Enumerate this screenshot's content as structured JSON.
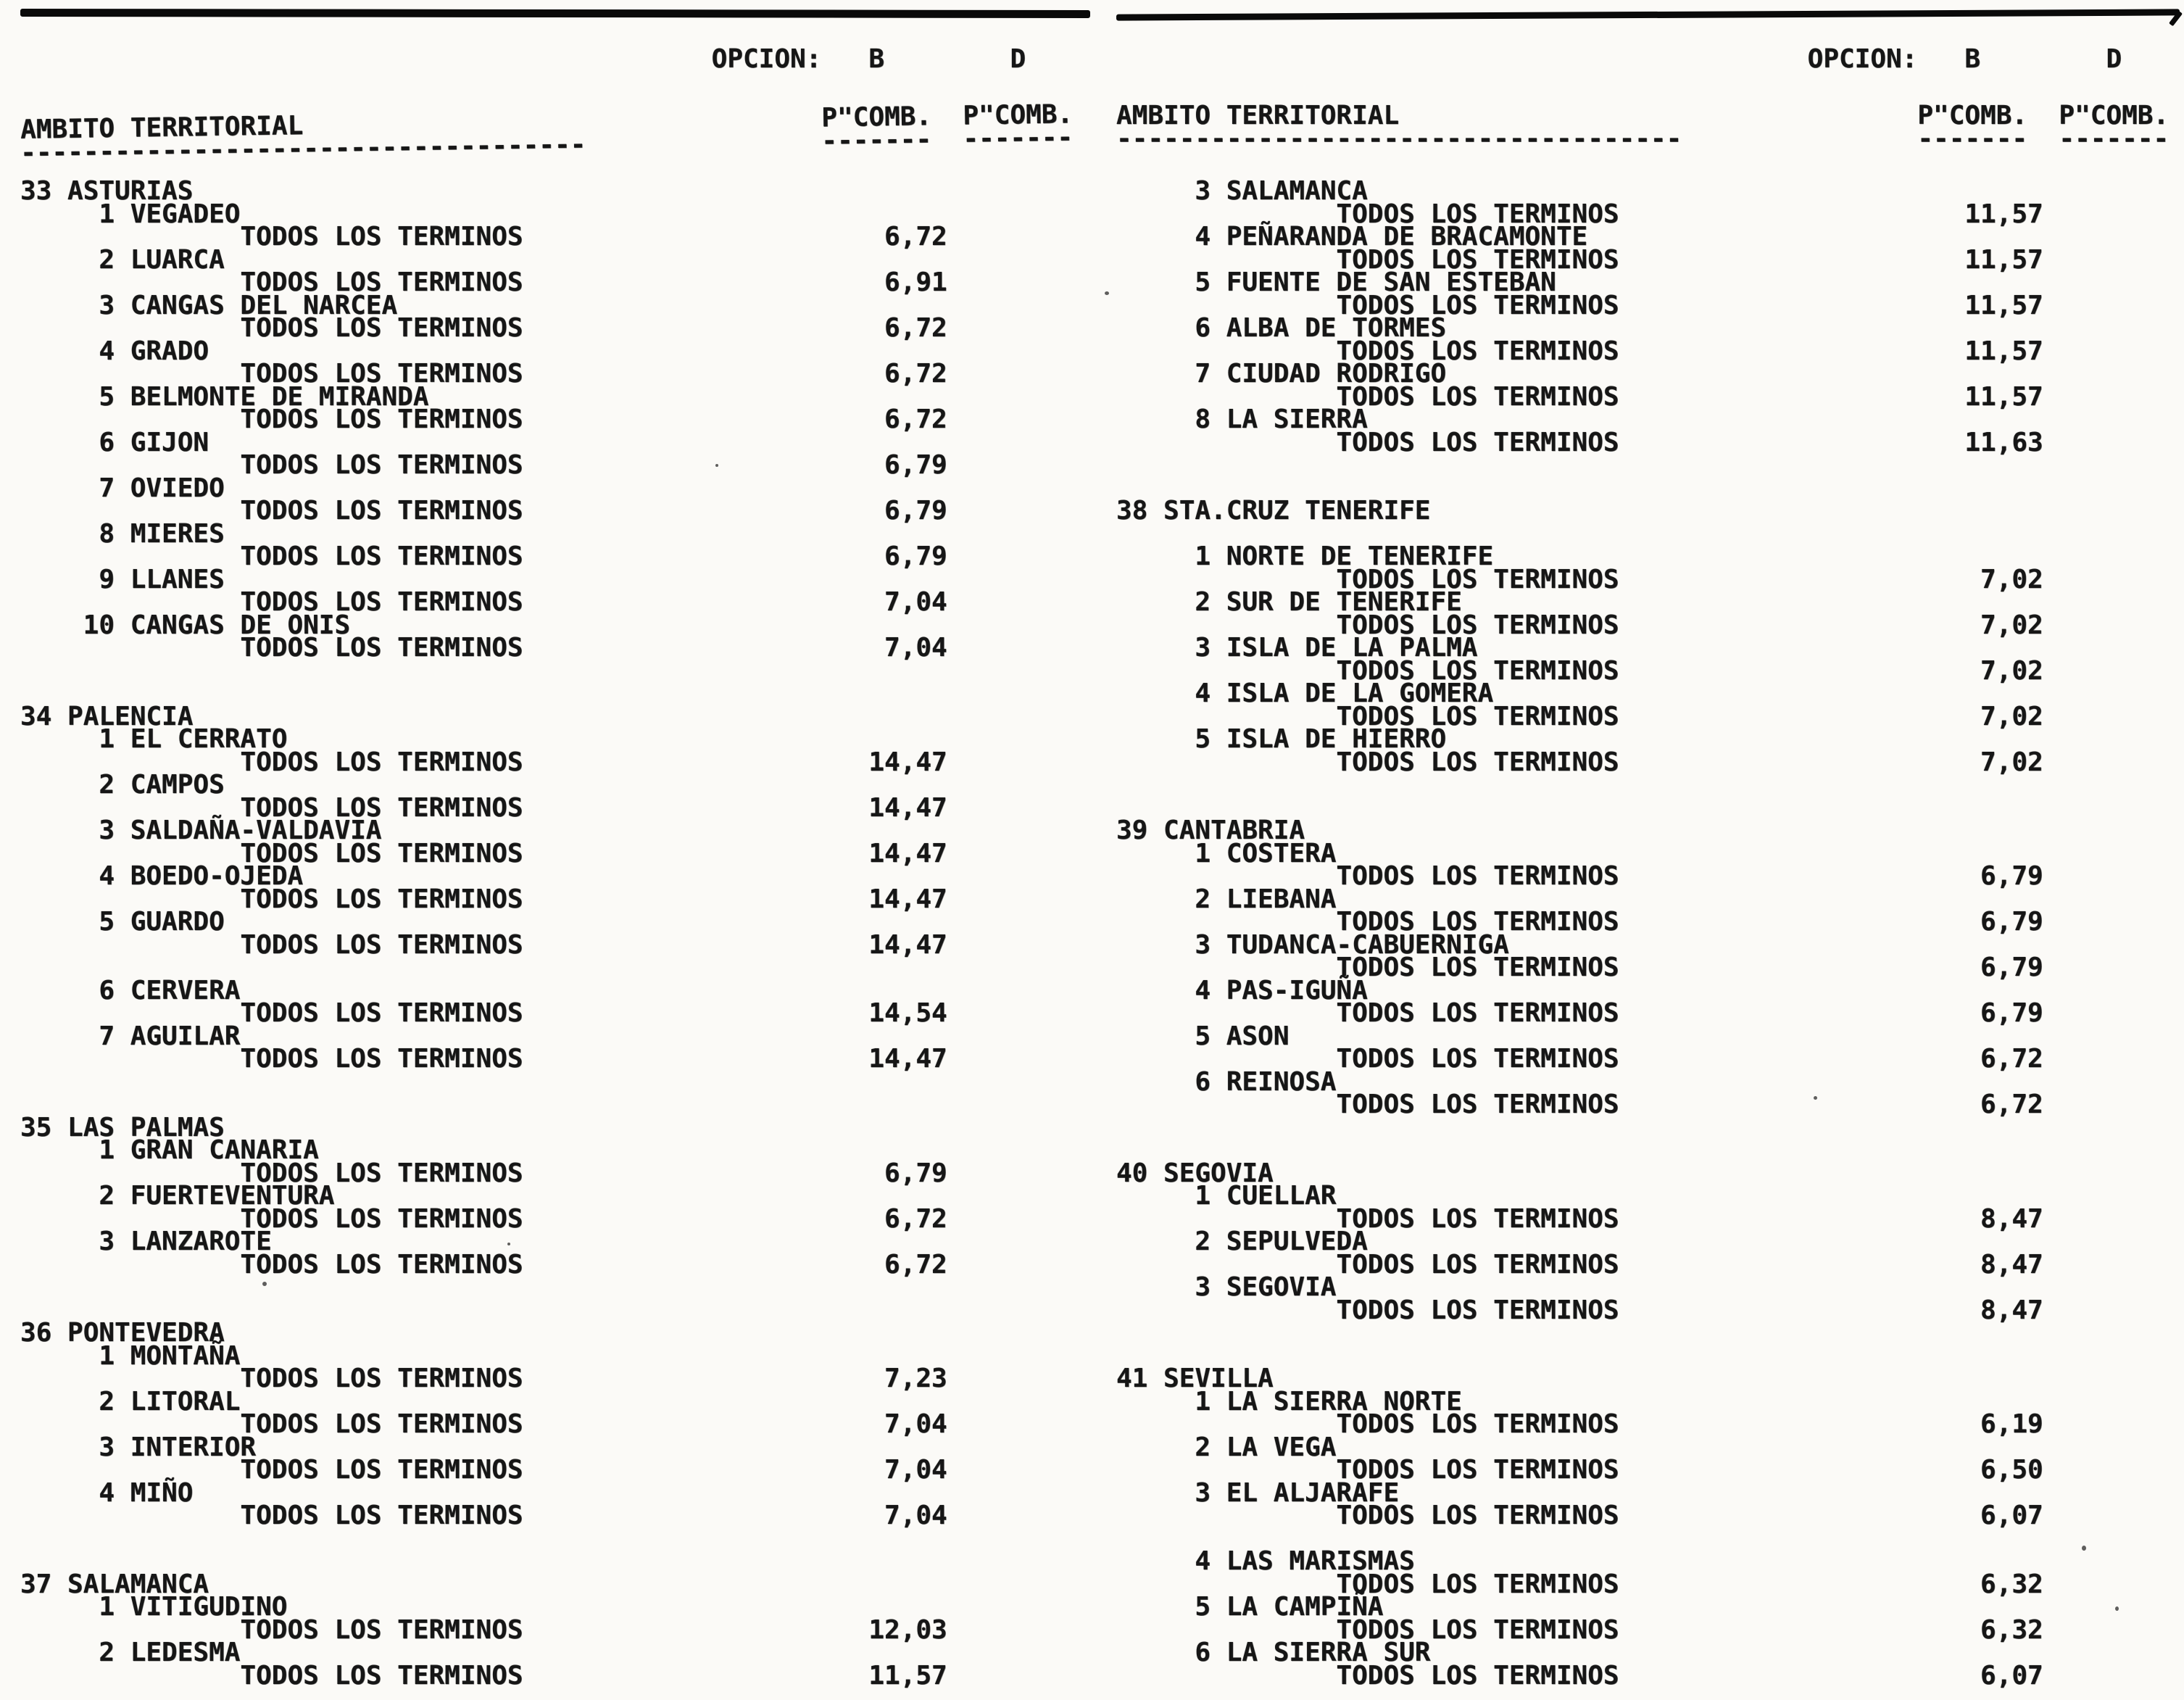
{
  "colors": {
    "ink": "#161616",
    "paper": "#fbfaf7",
    "rule": "#0a0a0a"
  },
  "scope_label": "TODOS LOS TERMINOS",
  "columns": [
    {
      "header": {
        "opcion_label": "OPCION:",
        "option_b": "B",
        "option_d": "D",
        "ambito_label": "AMBITO TERRITORIAL",
        "ambito_underline": "------------------------------------",
        "pcomb_b_label": "P\"COMB.",
        "pcomb_d_label": "P\"COMB.",
        "pcomb_underline_b": "-------",
        "pcomb_underline_d": "-------"
      },
      "provinces": [
        {
          "code": "33",
          "name": "ASTURIAS",
          "entries": [
            {
              "num": "1",
              "name": "VEGADEO",
              "pcomb_b": "6,72",
              "pcomb_d": ""
            },
            {
              "num": "2",
              "name": "LUARCA",
              "pcomb_b": "6,91",
              "pcomb_d": ""
            },
            {
              "num": "3",
              "name": "CANGAS DEL NARCEA",
              "pcomb_b": "6,72",
              "pcomb_d": ""
            },
            {
              "num": "4",
              "name": "GRADO",
              "pcomb_b": "6,72",
              "pcomb_d": ""
            },
            {
              "num": "5",
              "name": "BELMONTE DE MIRANDA",
              "pcomb_b": "6,72",
              "pcomb_d": ""
            },
            {
              "num": "6",
              "name": "GIJON",
              "pcomb_b": "6,79",
              "pcomb_d": ""
            },
            {
              "num": "7",
              "name": "OVIEDO",
              "pcomb_b": "6,79",
              "pcomb_d": ""
            },
            {
              "num": "8",
              "name": "MIERES",
              "pcomb_b": "6,79",
              "pcomb_d": ""
            },
            {
              "num": "9",
              "name": "LLANES",
              "pcomb_b": "7,04",
              "pcomb_d": ""
            },
            {
              "num": "10",
              "name": "CANGAS DE ONIS",
              "pcomb_b": "7,04",
              "pcomb_d": ""
            }
          ]
        },
        {
          "code": "34",
          "name": "PALENCIA",
          "entries": [
            {
              "num": "1",
              "name": "EL CERRATO",
              "pcomb_b": "14,47",
              "pcomb_d": ""
            },
            {
              "num": "2",
              "name": "CAMPOS",
              "pcomb_b": "14,47",
              "pcomb_d": ""
            },
            {
              "num": "3",
              "name": "SALDAÑA-VALDAVIA",
              "pcomb_b": "14,47",
              "pcomb_d": ""
            },
            {
              "num": "4",
              "name": "BOEDO-OJEDA",
              "pcomb_b": "14,47",
              "pcomb_d": ""
            },
            {
              "num": "5",
              "name": "GUARDO",
              "pcomb_b": "14,47",
              "pcomb_d": ""
            },
            {
              "num": "6",
              "name": "CERVERA",
              "pcomb_b": "14,54",
              "pcomb_d": "",
              "gap_before": true
            },
            {
              "num": "7",
              "name": "AGUILAR",
              "pcomb_b": "14,47",
              "pcomb_d": ""
            }
          ]
        },
        {
          "code": "35",
          "name": "LAS PALMAS",
          "entries": [
            {
              "num": "1",
              "name": "GRAN CANARIA",
              "pcomb_b": "6,79",
              "pcomb_d": ""
            },
            {
              "num": "2",
              "name": "FUERTEVENTURA",
              "pcomb_b": "6,72",
              "pcomb_d": ""
            },
            {
              "num": "3",
              "name": "LANZAROTE",
              "pcomb_b": "6,72",
              "pcomb_d": ""
            }
          ]
        },
        {
          "code": "36",
          "name": "PONTEVEDRA",
          "entries": [
            {
              "num": "1",
              "name": "MONTAÑA",
              "pcomb_b": "7,23",
              "pcomb_d": ""
            },
            {
              "num": "2",
              "name": "LITORAL",
              "pcomb_b": "7,04",
              "pcomb_d": ""
            },
            {
              "num": "3",
              "name": "INTERIOR",
              "pcomb_b": "7,04",
              "pcomb_d": ""
            },
            {
              "num": "4",
              "name": "MIÑO",
              "pcomb_b": "7,04",
              "pcomb_d": ""
            }
          ]
        },
        {
          "code": "37",
          "name": "SALAMANCA",
          "entries": [
            {
              "num": "1",
              "name": "VITIGUDINO",
              "pcomb_b": "12,03",
              "pcomb_d": ""
            },
            {
              "num": "2",
              "name": "LEDESMA",
              "pcomb_b": "11,57",
              "pcomb_d": ""
            }
          ]
        }
      ]
    },
    {
      "header": {
        "opcion_label": "OPCION:",
        "option_b": "B",
        "option_d": "D",
        "ambito_label": "AMBITO TERRITORIAL",
        "ambito_underline": "------------------------------------",
        "pcomb_b_label": "P\"COMB.",
        "pcomb_d_label": "P\"COMB.",
        "pcomb_underline_b": "-------",
        "pcomb_underline_d": "-------"
      },
      "provinces": [
        {
          "code": "",
          "name": "",
          "entries": [
            {
              "num": "3",
              "name": "SALAMANCA",
              "pcomb_b": "11,57",
              "pcomb_d": ""
            },
            {
              "num": "4",
              "name": "PEÑARANDA DE BRACAMONTE",
              "pcomb_b": "11,57",
              "pcomb_d": ""
            },
            {
              "num": "5",
              "name": "FUENTE DE SAN ESTEBAN",
              "pcomb_b": "11,57",
              "pcomb_d": ""
            },
            {
              "num": "6",
              "name": "ALBA DE TORMES",
              "pcomb_b": "11,57",
              "pcomb_d": ""
            },
            {
              "num": "7",
              "name": "CIUDAD RODRIGO",
              "pcomb_b": "11,57",
              "pcomb_d": ""
            },
            {
              "num": "8",
              "name": "LA SIERRA",
              "pcomb_b": "11,63",
              "pcomb_d": ""
            }
          ]
        },
        {
          "code": "38",
          "name": "STA.CRUZ TENERIFE",
          "blank_after_header": true,
          "entries": [
            {
              "num": "1",
              "name": "NORTE DE TENERIFE",
              "pcomb_b": "7,02",
              "pcomb_d": ""
            },
            {
              "num": "2",
              "name": "SUR DE TENERIFE",
              "pcomb_b": "7,02",
              "pcomb_d": ""
            },
            {
              "num": "3",
              "name": "ISLA DE LA PALMA",
              "pcomb_b": "7,02",
              "pcomb_d": ""
            },
            {
              "num": "4",
              "name": "ISLA DE LA GOMERA",
              "pcomb_b": "7,02",
              "pcomb_d": ""
            },
            {
              "num": "5",
              "name": "ISLA DE HIERRO",
              "pcomb_b": "7,02",
              "pcomb_d": ""
            }
          ]
        },
        {
          "code": "39",
          "name": "CANTABRIA",
          "entries": [
            {
              "num": "1",
              "name": "COSTERA",
              "pcomb_b": "6,79",
              "pcomb_d": ""
            },
            {
              "num": "2",
              "name": "LIEBANA",
              "pcomb_b": "6,79",
              "pcomb_d": ""
            },
            {
              "num": "3",
              "name": "TUDANCA-CABUERNIGA",
              "pcomb_b": "6,79",
              "pcomb_d": ""
            },
            {
              "num": "4",
              "name": "PAS-IGUÑA",
              "pcomb_b": "6,79",
              "pcomb_d": ""
            },
            {
              "num": "5",
              "name": "ASON",
              "pcomb_b": "6,72",
              "pcomb_d": ""
            },
            {
              "num": "6",
              "name": "REINOSA",
              "pcomb_b": "6,72",
              "pcomb_d": ""
            }
          ]
        },
        {
          "code": "40",
          "name": "SEGOVIA",
          "entries": [
            {
              "num": "1",
              "name": "CUELLAR",
              "pcomb_b": "8,47",
              "pcomb_d": ""
            },
            {
              "num": "2",
              "name": "SEPULVEDA",
              "pcomb_b": "8,47",
              "pcomb_d": ""
            },
            {
              "num": "3",
              "name": "SEGOVIA",
              "pcomb_b": "8,47",
              "pcomb_d": ""
            }
          ]
        },
        {
          "code": "41",
          "name": "SEVILLA",
          "entries": [
            {
              "num": "1",
              "name": "LA SIERRA NORTE",
              "pcomb_b": "6,19",
              "pcomb_d": ""
            },
            {
              "num": "2",
              "name": "LA VEGA",
              "pcomb_b": "6,50",
              "pcomb_d": ""
            },
            {
              "num": "3",
              "name": "EL ALJARAFE",
              "pcomb_b": "6,07",
              "pcomb_d": ""
            },
            {
              "num": "4",
              "name": "LAS MARISMAS",
              "pcomb_b": "6,32",
              "pcomb_d": "",
              "gap_before": true
            },
            {
              "num": "5",
              "name": "LA CAMPIÑA",
              "pcomb_b": "6,32",
              "pcomb_d": ""
            },
            {
              "num": "6",
              "name": "LA SIERRA SUR",
              "pcomb_b": "6,07",
              "pcomb_d": ""
            }
          ]
        }
      ]
    }
  ]
}
